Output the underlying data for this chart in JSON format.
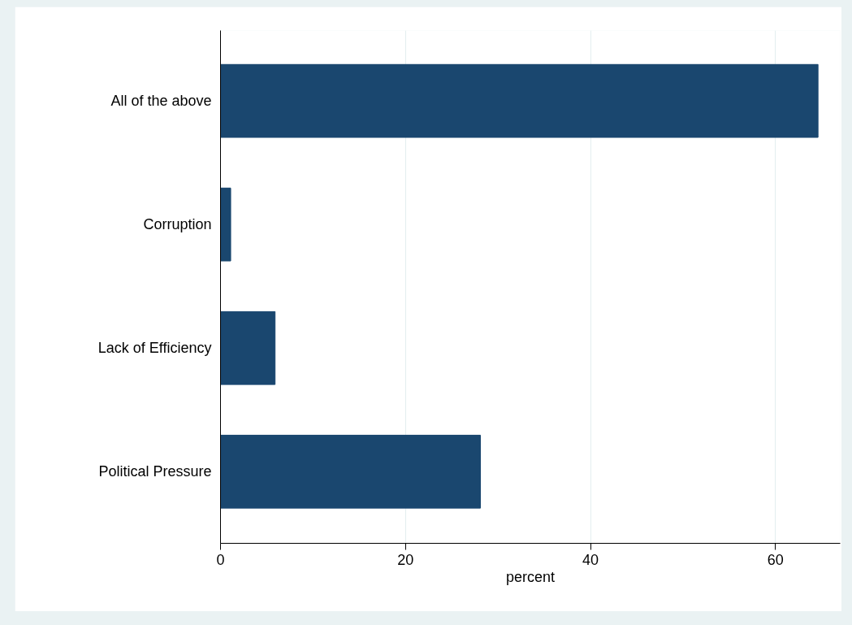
{
  "chart_data": {
    "type": "bar",
    "orientation": "horizontal",
    "categories": [
      "All of the above",
      "Corruption",
      "Lack of Efficiency",
      "Political Pressure"
    ],
    "values": [
      64.6,
      1.1,
      5.9,
      28.1
    ],
    "color": "#1a476f",
    "xlabel": "percent",
    "xlim": [
      0,
      67
    ],
    "xticks": [
      0,
      20,
      40,
      60
    ],
    "grid": "x"
  }
}
